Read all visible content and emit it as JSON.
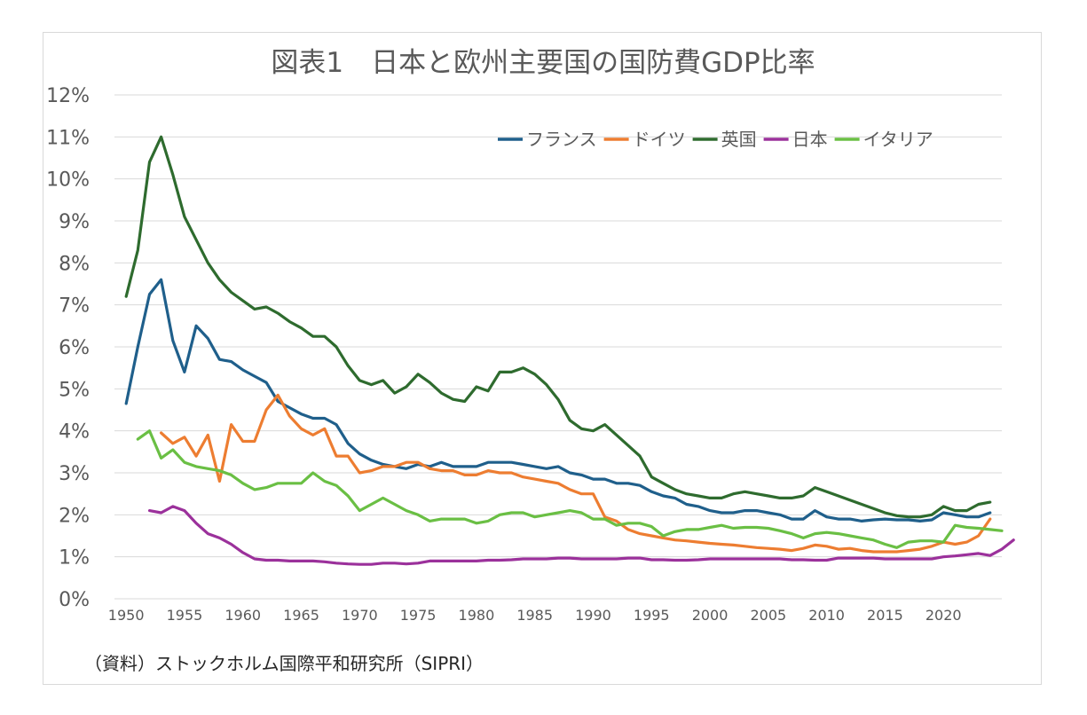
{
  "colors": {
    "France": "#1f5f8b",
    "Germany": "#ed7d31",
    "UK": "#2e6b2e",
    "Japan": "#9b319b",
    "Italy": "#6abf44",
    "grid": "#d9d9d9",
    "text": "#595959"
  },
  "chart_data": {
    "type": "line",
    "title": "図表1　日本と欧州主要国の国防費GDP比率",
    "source": "（資料）ストックホルム国際平和研究所（SIPRI）",
    "xlabel": "",
    "ylabel": "",
    "ylim": [
      0,
      12
    ],
    "yticks": [
      0,
      1,
      2,
      3,
      4,
      5,
      6,
      7,
      8,
      9,
      10,
      11,
      12
    ],
    "ytick_labels": [
      "0%",
      "1%",
      "2%",
      "3%",
      "4%",
      "5%",
      "6%",
      "7%",
      "8%",
      "9%",
      "10%",
      "11%",
      "12%"
    ],
    "xlim": [
      1949,
      2025
    ],
    "xticks": [
      1950,
      1955,
      1960,
      1965,
      1970,
      1975,
      1980,
      1985,
      1990,
      1995,
      2000,
      2005,
      2010,
      2015,
      2020
    ],
    "grid": true,
    "legend_position": "top-right",
    "series": [
      {
        "name": "フランス",
        "color_key": "France",
        "start": 1950,
        "values": [
          4.65,
          6.0,
          7.25,
          7.6,
          6.15,
          5.4,
          6.5,
          6.2,
          5.7,
          5.65,
          5.45,
          5.3,
          5.15,
          4.7,
          4.55,
          4.4,
          4.3,
          4.3,
          4.15,
          3.7,
          3.45,
          3.3,
          3.2,
          3.15,
          3.1,
          3.2,
          3.15,
          3.25,
          3.15,
          3.15,
          3.15,
          3.25,
          3.25,
          3.25,
          3.2,
          3.15,
          3.1,
          3.15,
          3.0,
          2.95,
          2.85,
          2.85,
          2.75,
          2.75,
          2.7,
          2.55,
          2.45,
          2.4,
          2.25,
          2.2,
          2.1,
          2.05,
          2.05,
          2.1,
          2.1,
          2.05,
          2.0,
          1.9,
          1.9,
          2.1,
          1.95,
          1.9,
          1.9,
          1.85,
          1.88,
          1.9,
          1.88,
          1.88,
          1.85,
          1.88,
          2.05,
          2.0,
          1.95,
          1.95,
          2.05
        ]
      },
      {
        "name": "ドイツ",
        "color_key": "Germany",
        "start": 1953,
        "values": [
          3.95,
          3.7,
          3.85,
          3.4,
          3.9,
          2.8,
          4.15,
          3.75,
          3.75,
          4.5,
          4.85,
          4.35,
          4.05,
          3.9,
          4.05,
          3.4,
          3.4,
          3.0,
          3.05,
          3.15,
          3.15,
          3.25,
          3.25,
          3.1,
          3.05,
          3.05,
          2.95,
          2.95,
          3.05,
          3.0,
          3.0,
          2.9,
          2.85,
          2.8,
          2.75,
          2.6,
          2.5,
          2.5,
          1.95,
          1.85,
          1.65,
          1.55,
          1.5,
          1.45,
          1.4,
          1.38,
          1.35,
          1.32,
          1.3,
          1.28,
          1.25,
          1.22,
          1.2,
          1.18,
          1.15,
          1.2,
          1.28,
          1.25,
          1.18,
          1.2,
          1.15,
          1.12,
          1.12,
          1.12,
          1.15,
          1.18,
          1.25,
          1.35,
          1.3,
          1.35,
          1.5,
          1.9
        ]
      },
      {
        "name": "英国",
        "color_key": "UK",
        "start": 1950,
        "values": [
          7.2,
          8.3,
          10.4,
          11.0,
          10.1,
          9.1,
          8.55,
          8.0,
          7.6,
          7.3,
          7.1,
          6.9,
          6.95,
          6.8,
          6.6,
          6.45,
          6.25,
          6.25,
          6.0,
          5.55,
          5.2,
          5.1,
          5.2,
          4.9,
          5.05,
          5.35,
          5.15,
          4.9,
          4.75,
          4.7,
          5.05,
          4.95,
          5.4,
          5.4,
          5.5,
          5.35,
          5.1,
          4.75,
          4.25,
          4.05,
          4.0,
          4.15,
          3.9,
          3.65,
          3.4,
          2.9,
          2.75,
          2.6,
          2.5,
          2.45,
          2.4,
          2.4,
          2.5,
          2.55,
          2.5,
          2.45,
          2.4,
          2.4,
          2.45,
          2.65,
          2.55,
          2.45,
          2.35,
          2.25,
          2.15,
          2.05,
          1.98,
          1.95,
          1.95,
          2.0,
          2.2,
          2.1,
          2.1,
          2.25,
          2.3
        ]
      },
      {
        "name": "日本",
        "color_key": "Japan",
        "start": 1952,
        "values": [
          2.1,
          2.05,
          2.2,
          2.1,
          1.8,
          1.55,
          1.45,
          1.3,
          1.1,
          0.95,
          0.92,
          0.92,
          0.9,
          0.9,
          0.9,
          0.88,
          0.85,
          0.83,
          0.82,
          0.82,
          0.85,
          0.85,
          0.83,
          0.85,
          0.9,
          0.9,
          0.9,
          0.9,
          0.9,
          0.92,
          0.92,
          0.93,
          0.95,
          0.95,
          0.95,
          0.97,
          0.97,
          0.95,
          0.95,
          0.95,
          0.95,
          0.97,
          0.97,
          0.93,
          0.93,
          0.92,
          0.92,
          0.93,
          0.95,
          0.95,
          0.95,
          0.95,
          0.95,
          0.95,
          0.95,
          0.93,
          0.93,
          0.92,
          0.92,
          0.97,
          0.97,
          0.97,
          0.97,
          0.95,
          0.95,
          0.95,
          0.95,
          0.95,
          1.0,
          1.02,
          1.05,
          1.08,
          1.03,
          1.18,
          1.4
        ]
      },
      {
        "name": "イタリア",
        "color_key": "Italy",
        "start": 1951,
        "values": [
          3.8,
          4.0,
          3.35,
          3.55,
          3.25,
          3.15,
          3.1,
          3.05,
          2.95,
          2.75,
          2.6,
          2.65,
          2.75,
          2.75,
          2.75,
          3.0,
          2.8,
          2.7,
          2.45,
          2.1,
          2.25,
          2.4,
          2.25,
          2.1,
          2.0,
          1.85,
          1.9,
          1.9,
          1.9,
          1.8,
          1.85,
          2.0,
          2.05,
          2.05,
          1.95,
          2.0,
          2.05,
          2.1,
          2.05,
          1.9,
          1.9,
          1.75,
          1.8,
          1.8,
          1.72,
          1.5,
          1.6,
          1.65,
          1.65,
          1.7,
          1.75,
          1.68,
          1.7,
          1.7,
          1.68,
          1.62,
          1.55,
          1.45,
          1.55,
          1.58,
          1.55,
          1.5,
          1.45,
          1.4,
          1.3,
          1.22,
          1.35,
          1.38,
          1.38,
          1.35,
          1.75,
          1.7,
          1.68,
          1.65,
          1.62
        ]
      }
    ]
  }
}
